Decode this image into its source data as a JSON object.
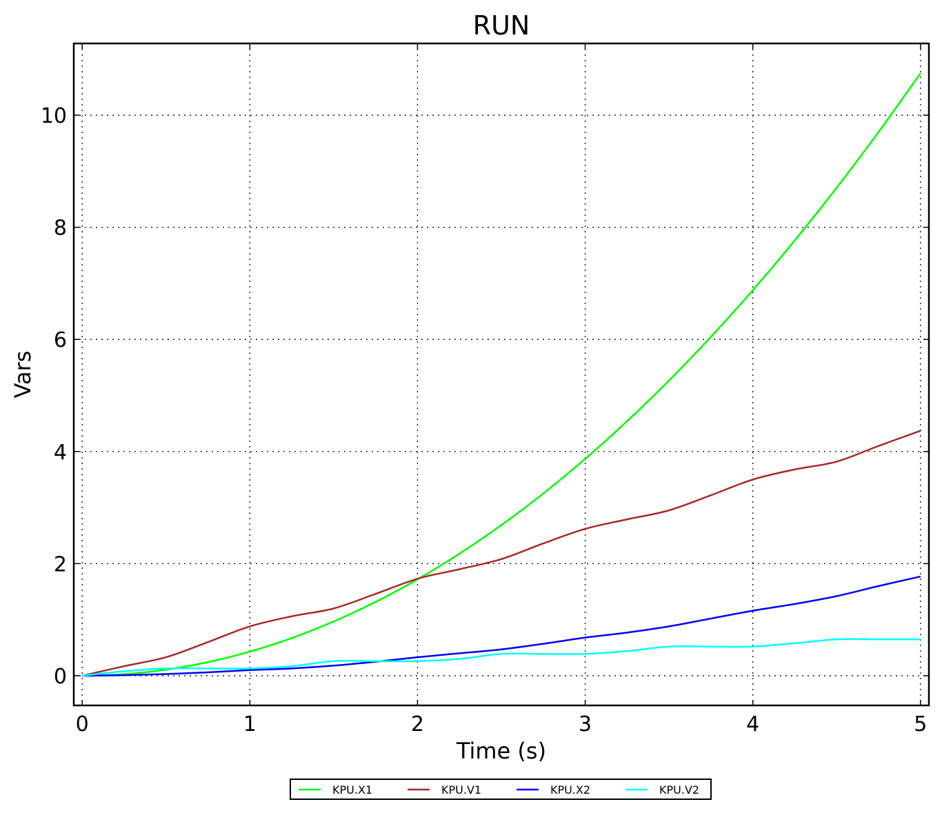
{
  "chart_data": {
    "type": "line",
    "title": "RUN",
    "xlabel": "Time (s)",
    "ylabel": "Vars",
    "xlim": [
      -0.05,
      5.05
    ],
    "ylim": [
      -0.53,
      11.28
    ],
    "xticks": [
      "0",
      "1",
      "2",
      "3",
      "4",
      "5"
    ],
    "yticks": [
      "0",
      "2",
      "4",
      "6",
      "8",
      "10"
    ],
    "grid": true,
    "legend_placement": "bottom-center, outside",
    "x": [
      0,
      0.25,
      0.5,
      0.75,
      1,
      1.25,
      1.5,
      1.75,
      2,
      2.25,
      2.5,
      2.75,
      3,
      3.25,
      3.5,
      3.75,
      4,
      4.25,
      4.5,
      4.75,
      5
    ],
    "series": [
      {
        "name": "KPU.X1",
        "color": "#00ff00",
        "values": [
          0,
          0.027,
          0.108,
          0.242,
          0.43,
          0.672,
          0.968,
          1.317,
          1.72,
          2.177,
          2.688,
          3.252,
          3.87,
          4.542,
          5.268,
          6.047,
          6.88,
          7.767,
          8.708,
          9.702,
          10.75
        ]
      },
      {
        "name": "KPU.V1",
        "color": "#a52a2a",
        "values": [
          0,
          0.17,
          0.33,
          0.6,
          0.88,
          1.06,
          1.2,
          1.46,
          1.73,
          1.9,
          2.08,
          2.36,
          2.62,
          2.79,
          2.95,
          3.22,
          3.5,
          3.68,
          3.82,
          4.1,
          4.37
        ]
      },
      {
        "name": "KPU.X2",
        "color": "#0000ff",
        "values": [
          0,
          0.01,
          0.03,
          0.06,
          0.1,
          0.13,
          0.18,
          0.25,
          0.33,
          0.4,
          0.47,
          0.57,
          0.68,
          0.77,
          0.88,
          1.02,
          1.16,
          1.28,
          1.42,
          1.6,
          1.77
        ]
      },
      {
        "name": "KPU.V2",
        "color": "#00ffff",
        "values": [
          0,
          0.08,
          0.13,
          0.13,
          0.13,
          0.17,
          0.26,
          0.26,
          0.26,
          0.3,
          0.39,
          0.39,
          0.39,
          0.44,
          0.52,
          0.52,
          0.52,
          0.58,
          0.65,
          0.65,
          0.65
        ]
      }
    ]
  }
}
